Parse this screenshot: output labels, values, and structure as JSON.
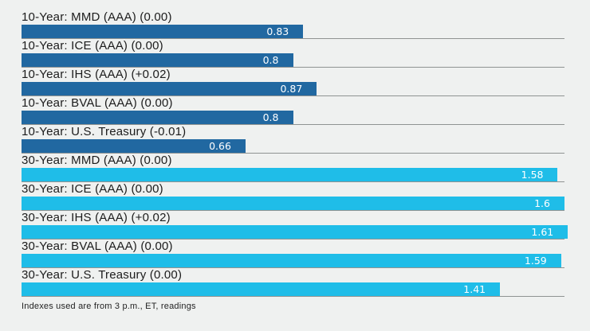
{
  "chart_data": {
    "type": "bar",
    "orientation": "horizontal",
    "title": "",
    "xlabel": "",
    "ylabel": "",
    "xlim": [
      0,
      1.6
    ],
    "grid": false,
    "legend": false,
    "groups": [
      {
        "name": "10-Year",
        "color": "#2168a1"
      },
      {
        "name": "30-Year",
        "color": "#1fbde8"
      }
    ],
    "rows": [
      {
        "label": "10-Year: MMD (AAA) (0.00)",
        "value": 0.83,
        "value_label": "0.83",
        "group": "10-Year"
      },
      {
        "label": "10-Year: ICE (AAA) (0.00)",
        "value": 0.8,
        "value_label": "0.8",
        "group": "10-Year"
      },
      {
        "label": "10-Year: IHS (AAA) (+0.02)",
        "value": 0.87,
        "value_label": "0.87",
        "group": "10-Year"
      },
      {
        "label": "10-Year: BVAL (AAA) (0.00)",
        "value": 0.8,
        "value_label": "0.8",
        "group": "10-Year"
      },
      {
        "label": "10-Year: U.S. Treasury (-0.01)",
        "value": 0.66,
        "value_label": "0.66",
        "group": "10-Year"
      },
      {
        "label": "30-Year: MMD (AAA) (0.00)",
        "value": 1.58,
        "value_label": "1.58",
        "group": "30-Year"
      },
      {
        "label": "30-Year: ICE (AAA) (0.00)",
        "value": 1.6,
        "value_label": "1.6",
        "group": "30-Year"
      },
      {
        "label": "30-Year: IHS (AAA) (+0.02)",
        "value": 1.61,
        "value_label": "1.61",
        "group": "30-Year"
      },
      {
        "label": "30-Year: BVAL (AAA) (0.00)",
        "value": 1.59,
        "value_label": "1.59",
        "group": "30-Year"
      },
      {
        "label": "30-Year: U.S. Treasury (0.00)",
        "value": 1.41,
        "value_label": "1.41",
        "group": "30-Year"
      }
    ],
    "footnote": "Indexes used are from 3 p.m., ET, readings"
  },
  "footer": {
    "note": "Indexes used are from 3 p.m., ET, readings"
  },
  "colors": {
    "background": "#eff1f0",
    "bar_10_year": "#2168a1",
    "bar_30_year": "#1fbde8",
    "row_line": "#8f9392",
    "label_text": "#1c1c1c",
    "value_text": "#ffffff"
  }
}
